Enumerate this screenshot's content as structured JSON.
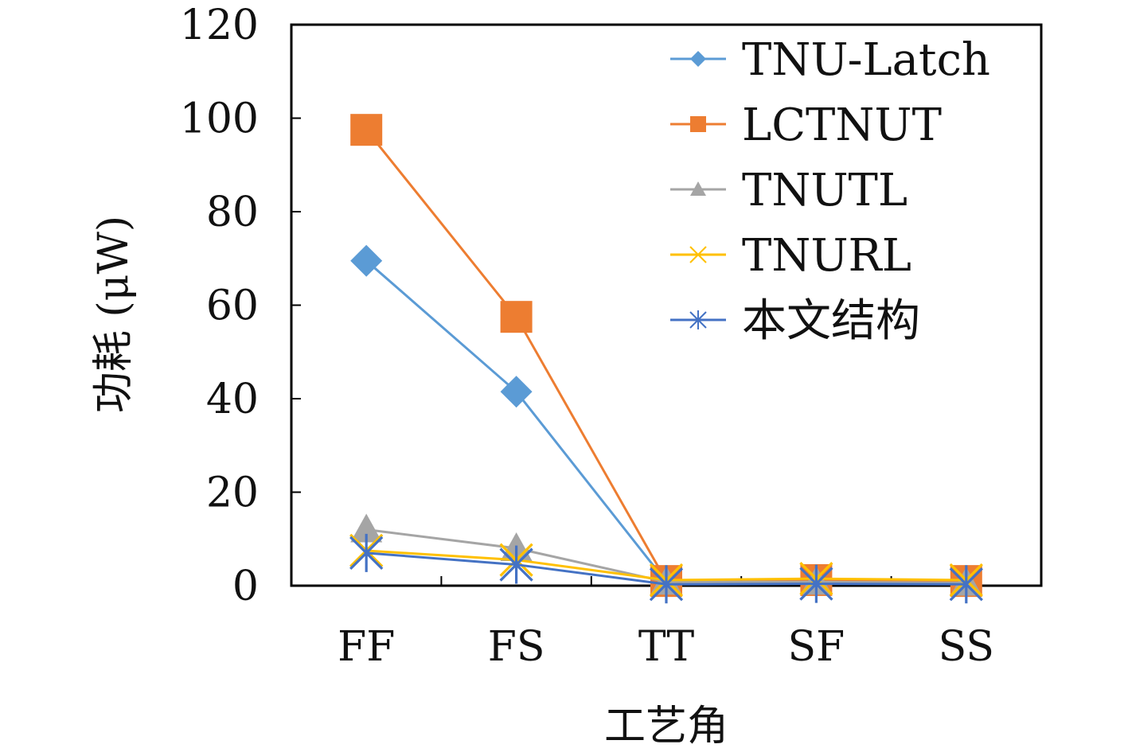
{
  "chart_data": {
    "type": "line",
    "categories": [
      "FF",
      "FS",
      "TT",
      "SF",
      "SS"
    ],
    "xlabel": "工艺角",
    "ylabel": "功耗 (μW)",
    "ylim": [
      0,
      120
    ],
    "yticks": [
      0,
      20,
      40,
      60,
      80,
      100,
      120
    ],
    "grid": false,
    "legend_position": "top-right",
    "series": [
      {
        "name": "TNU-Latch",
        "color": "#5B9BD5",
        "marker": "diamond",
        "values": [
          69.5,
          41.5,
          0.8,
          1.0,
          0.8
        ]
      },
      {
        "name": "LCTNUT",
        "color": "#ED7D31",
        "marker": "square",
        "values": [
          97.5,
          57.5,
          1.0,
          1.2,
          1.0
        ]
      },
      {
        "name": "TNUTL",
        "color": "#A5A5A5",
        "marker": "triangle",
        "values": [
          12.0,
          8.0,
          0.8,
          0.8,
          0.6
        ]
      },
      {
        "name": "TNURL",
        "color": "#FFC000",
        "marker": "x",
        "values": [
          7.5,
          5.5,
          1.2,
          1.5,
          1.2
        ]
      },
      {
        "name": "本文结构",
        "color": "#4472C4",
        "marker": "asterisk",
        "values": [
          7.0,
          4.5,
          0.3,
          0.4,
          0.3
        ]
      }
    ]
  }
}
